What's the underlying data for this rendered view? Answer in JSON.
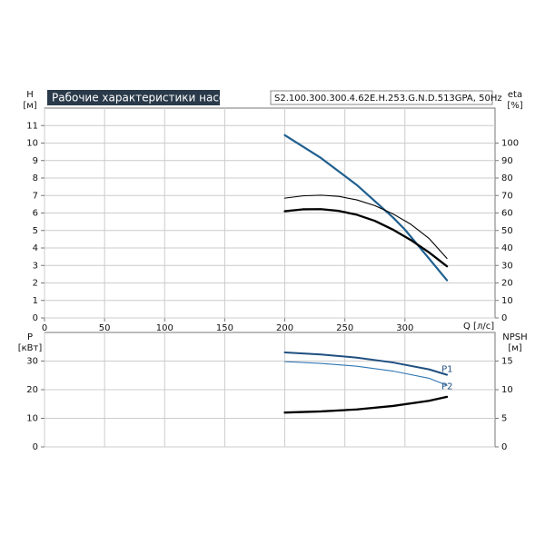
{
  "chart_data": [
    {
      "type": "line",
      "title": "Рабочие характеристики насоса",
      "subtitle": "S2.100.300.300.4.62E.H.253.G.N.D.513GPA, 50Hz",
      "xlabel": "Q [л/с]",
      "ylabel": "H [м]",
      "y2label": "eta [%]",
      "xlim": [
        0,
        375
      ],
      "ylim": [
        0,
        12
      ],
      "y2lim": [
        0,
        120
      ],
      "x_ticks": [
        "0",
        "50",
        "100",
        "150",
        "200",
        "250",
        "300"
      ],
      "y_ticks": [
        "0",
        "1",
        "2",
        "3",
        "4",
        "5",
        "6",
        "7",
        "8",
        "9",
        "10",
        "11"
      ],
      "y2_ticks": [
        "0",
        "10",
        "20",
        "30",
        "40",
        "50",
        "60",
        "70",
        "80",
        "90",
        "100"
      ],
      "grid": true,
      "series": [
        {
          "axis": "y2",
          "color": "#1f5f8f",
          "x": [
            200,
            230,
            260,
            290,
            300,
            320,
            335
          ],
          "y": [
            104.5,
            91.5,
            76,
            57.5,
            50.5,
            34,
            21.5
          ]
        },
        {
          "axis": "y",
          "color": "#000000",
          "x": [
            200,
            215,
            230,
            245,
            260,
            275,
            290,
            305,
            320,
            335
          ],
          "y": [
            6.1,
            6.21,
            6.22,
            6.12,
            5.9,
            5.55,
            5.05,
            4.45,
            3.75,
            2.95
          ]
        },
        {
          "axis": "y",
          "color": "#000000",
          "x": [
            200,
            215,
            230,
            245,
            260,
            275,
            290,
            305,
            320,
            335
          ],
          "y": [
            6.85,
            6.98,
            7.02,
            6.95,
            6.75,
            6.42,
            5.95,
            5.35,
            4.55,
            3.4
          ]
        }
      ]
    },
    {
      "type": "line",
      "xlim": [
        0,
        375
      ],
      "ylim": [
        0,
        40
      ],
      "y2lim": [
        0,
        20
      ],
      "ylabel": "P [кВт]",
      "y2label": "NPSH [м]",
      "y_ticks": [
        "0",
        "10",
        "20",
        "30"
      ],
      "y2_ticks": [
        "0",
        "5",
        "10",
        "15"
      ],
      "grid": true,
      "series": [
        {
          "name": "P1",
          "axis": "y",
          "color": "#1f4f80",
          "x": [
            200,
            230,
            260,
            290,
            320,
            335
          ],
          "y": [
            33,
            32.3,
            31.2,
            29.5,
            27.1,
            25.2
          ]
        },
        {
          "name": "P2",
          "axis": "y",
          "color": "#2f77b4",
          "x": [
            200,
            230,
            260,
            290,
            320,
            335
          ],
          "y": [
            29.8,
            29.2,
            28.2,
            26.5,
            24.0,
            21.5
          ]
        },
        {
          "axis": "y",
          "color": "#000000",
          "x": [
            200,
            230,
            260,
            290,
            320,
            335
          ],
          "y": [
            12,
            12.4,
            13.1,
            14.3,
            16.1,
            17.5
          ]
        }
      ]
    }
  ]
}
